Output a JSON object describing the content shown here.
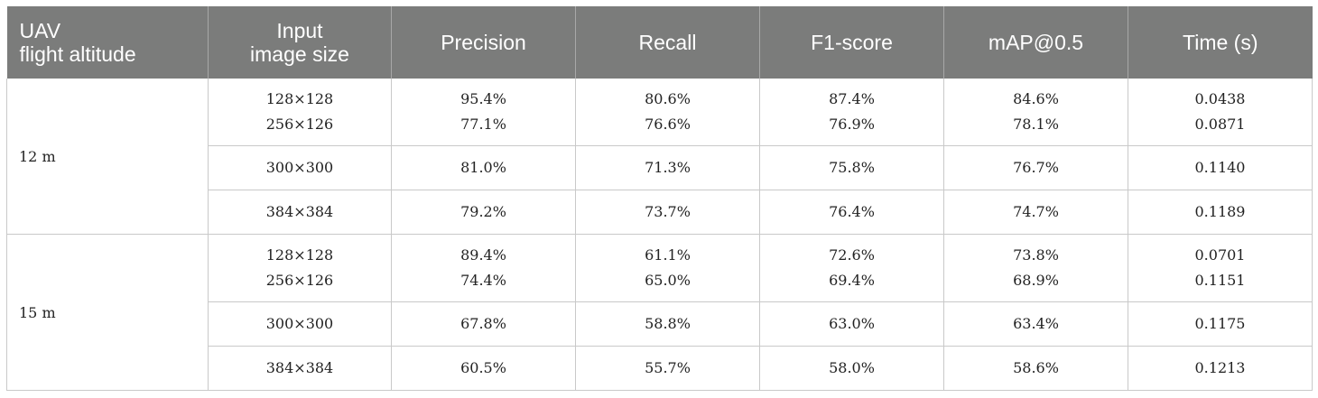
{
  "headers": [
    "UAV\nflight altitude",
    "Input\nimage size",
    "Precision",
    "Recall",
    "F1-score",
    "mAP@0.5",
    "Time (s)"
  ],
  "header_lines": [
    [
      "UAV",
      "flight altitude"
    ],
    [
      "Input",
      "image size"
    ],
    [
      "Precision"
    ],
    [
      "Recall"
    ],
    [
      "F1-score"
    ],
    [
      "mAP@0.5"
    ],
    [
      "Time (s)"
    ]
  ],
  "groups": [
    {
      "altitude": "12 m",
      "rows": [
        {
          "size": [
            "128×128",
            "256×126"
          ],
          "precision": [
            "95.4%",
            "77.1%"
          ],
          "recall": [
            "80.6%",
            "76.6%"
          ],
          "f1": [
            "87.4%",
            "76.9%"
          ],
          "map": [
            "84.6%",
            "78.1%"
          ],
          "time": [
            "0.0438",
            "0.0871"
          ]
        },
        {
          "size": [
            "300×300"
          ],
          "precision": [
            "81.0%"
          ],
          "recall": [
            "71.3%"
          ],
          "f1": [
            "75.8%"
          ],
          "map": [
            "76.7%"
          ],
          "time": [
            "0.1140"
          ]
        },
        {
          "size": [
            "384×384"
          ],
          "precision": [
            "79.2%"
          ],
          "recall": [
            "73.7%"
          ],
          "f1": [
            "76.4%"
          ],
          "map": [
            "74.7%"
          ],
          "time": [
            "0.1189"
          ]
        }
      ]
    },
    {
      "altitude": "15 m",
      "rows": [
        {
          "size": [
            "128×128",
            "256×126"
          ],
          "precision": [
            "89.4%",
            "74.4%"
          ],
          "recall": [
            "61.1%",
            "65.0%"
          ],
          "f1": [
            "72.6%",
            "69.4%"
          ],
          "map": [
            "73.8%",
            "68.9%"
          ],
          "time": [
            "0.0701",
            "0.1151"
          ]
        },
        {
          "size": [
            "300×300"
          ],
          "precision": [
            "67.8%"
          ],
          "recall": [
            "58.8%"
          ],
          "f1": [
            "63.0%"
          ],
          "map": [
            "63.4%"
          ],
          "time": [
            "0.1175"
          ]
        },
        {
          "size": [
            "384×384"
          ],
          "precision": [
            "60.5%"
          ],
          "recall": [
            "55.7%"
          ],
          "f1": [
            "58.0%"
          ],
          "map": [
            "58.6%"
          ],
          "time": [
            "0.1213"
          ]
        }
      ]
    }
  ]
}
